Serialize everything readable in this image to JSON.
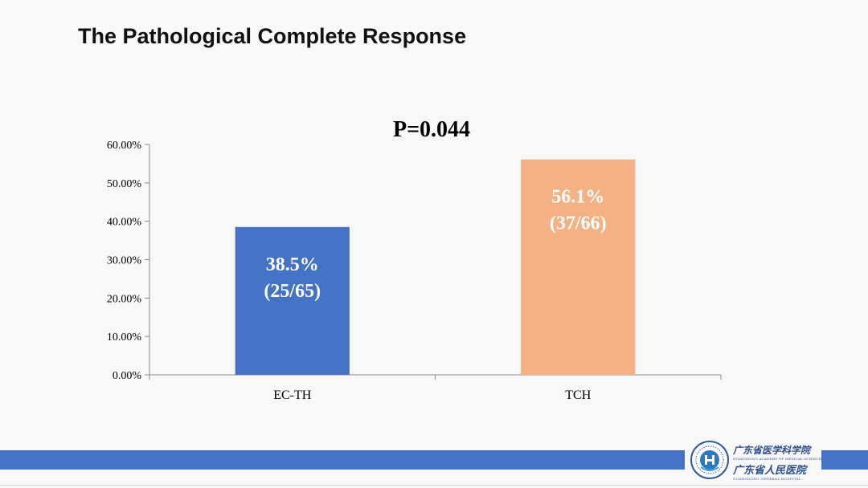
{
  "slide": {
    "title": "The Pathological Complete Response"
  },
  "chart_data": {
    "type": "bar",
    "title": "P=0.044",
    "categories": [
      "EC-TH",
      "TCH"
    ],
    "values": [
      38.5,
      56.1
    ],
    "data_labels": [
      {
        "pct": "38.5%",
        "ratio": "(25/65)"
      },
      {
        "pct": "56.1%",
        "ratio": "(37/66)"
      }
    ],
    "bar_colors": [
      "#4472c4",
      "#f4b183"
    ],
    "ylim": [
      0,
      60
    ],
    "yticks": [
      0,
      10,
      20,
      30,
      40,
      50,
      60
    ],
    "ytick_labels": [
      "0.00%",
      "10.00%",
      "20.00%",
      "30.00%",
      "40.00%",
      "50.00%",
      "60.00%"
    ],
    "xlabel": "",
    "ylabel": "",
    "grid": false
  },
  "footer": {
    "org_name_1": "广东省医学科学院",
    "org_name_1_en": "GUANGDONG ACADEMY OF MEDICAL SCIENCES",
    "org_name_2": "广东省人民医院",
    "org_name_2_en": "GUANGDONG GENERAL HOSPITAL",
    "accent": "#4472c4"
  }
}
